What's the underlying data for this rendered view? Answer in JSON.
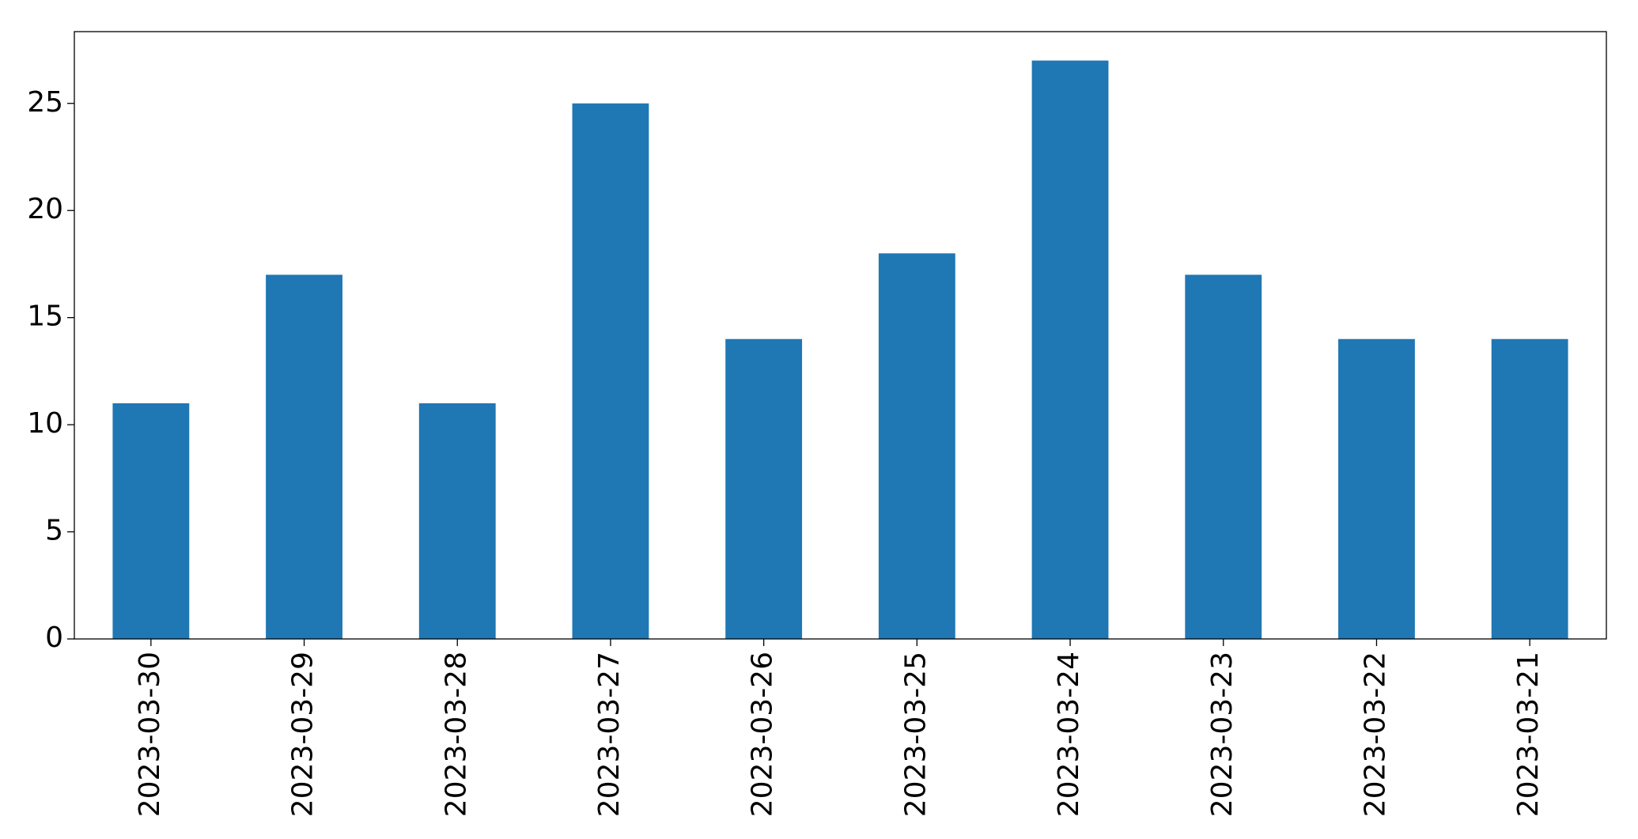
{
  "chart_data": {
    "type": "bar",
    "categories": [
      "2023-03-30",
      "2023-03-29",
      "2023-03-28",
      "2023-03-27",
      "2023-03-26",
      "2023-03-25",
      "2023-03-24",
      "2023-03-23",
      "2023-03-22",
      "2023-03-21"
    ],
    "values": [
      11,
      17,
      11,
      25,
      14,
      18,
      27,
      17,
      14,
      14
    ],
    "color": "#1f77b4",
    "ylim": [
      0,
      28.35
    ],
    "yticks": [
      0,
      5,
      10,
      15,
      20,
      25
    ],
    "grid": false
  }
}
